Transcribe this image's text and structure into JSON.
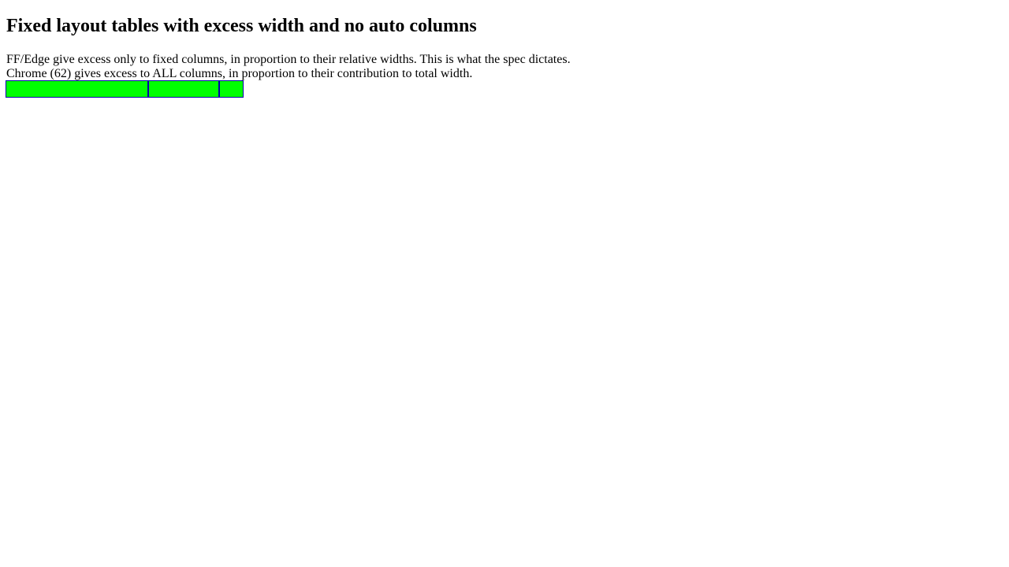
{
  "page": {
    "title": "Fixed layout tables with excess width and no auto columns",
    "description_lines": [
      "FF/Edge give excess only to fixed columns, in proportion to their relative widths. This is what the spec dictates.",
      "Chrome (62) gives excess to ALL columns, in proportion to their contribution to total width."
    ]
  },
  "colors": {
    "cell_background": "#00ff00",
    "cell_border": "#0000aa"
  }
}
